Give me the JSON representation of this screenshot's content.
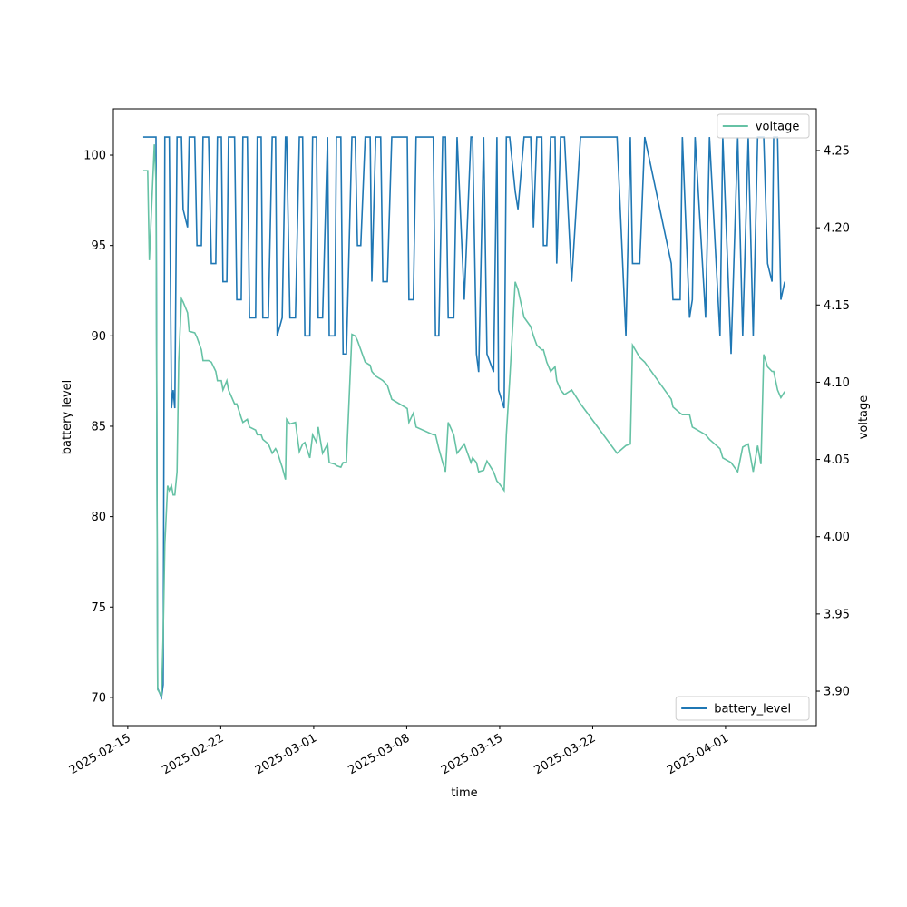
{
  "chart_data": {
    "type": "line",
    "x_label": "time",
    "y_label": "battery level",
    "y2_label": "voltage",
    "x": [
      "2025-02-16 04:00",
      "2025-02-16 12:00",
      "2025-02-16 15:00",
      "2025-02-17 00:00",
      "2025-02-17 03:00",
      "2025-02-17 06:00",
      "2025-02-17 13:00",
      "2025-02-17 16:00",
      "2025-02-17 19:00",
      "2025-02-18 00:00",
      "2025-02-18 03:00",
      "2025-02-18 07:00",
      "2025-02-18 10:00",
      "2025-02-18 13:00",
      "2025-02-18 17:00",
      "2025-02-18 20:00",
      "2025-02-19 01:00",
      "2025-02-19 04:00",
      "2025-02-19 12:00",
      "2025-02-19 15:00",
      "2025-02-20 01:00",
      "2025-02-20 05:00",
      "2025-02-20 13:00",
      "2025-02-20 16:00",
      "2025-02-21 02:00",
      "2025-02-21 07:00",
      "2025-02-21 15:00",
      "2025-02-21 18:00",
      "2025-02-22 01:00",
      "2025-02-22 04:00",
      "2025-02-22 11:00",
      "2025-02-22 14:00",
      "2025-02-23 01:00",
      "2025-02-23 05:00",
      "2025-02-23 13:00",
      "2025-02-23 16:00",
      "2025-02-24 00:00",
      "2025-02-24 04:00",
      "2025-02-24 15:00",
      "2025-02-24 18:00",
      "2025-02-25 01:00",
      "2025-02-25 04:00",
      "2025-02-25 14:00",
      "2025-02-25 21:00",
      "2025-02-26 03:00",
      "2025-02-26 06:00",
      "2025-02-26 15:00",
      "2025-02-26 21:00",
      "2025-02-26 23:00",
      "2025-02-27 05:00",
      "2025-02-27 15:00",
      "2025-02-27 22:00",
      "2025-02-28 04:00",
      "2025-02-28 08:00",
      "2025-02-28 17:00",
      "2025-02-28 22:00",
      "2025-03-01 05:00",
      "2025-03-01 08:00",
      "2025-03-01 16:00",
      "2025-03-02 01:00",
      "2025-03-02 04:00",
      "2025-03-02 14:00",
      "2025-03-02 17:00",
      "2025-03-03 01:00",
      "2025-03-03 05:00",
      "2025-03-03 11:00",
      "2025-03-03 21:00",
      "2025-03-04 03:00",
      "2025-03-04 07:00",
      "2025-03-04 13:00",
      "2025-03-04 21:00",
      "2025-03-05 06:00",
      "2025-03-05 09:00",
      "2025-03-05 16:00",
      "2025-03-06 01:00",
      "2025-03-06 05:00",
      "2025-03-06 13:00",
      "2025-03-06 21:00",
      "2025-03-08 01:00",
      "2025-03-08 04:00",
      "2025-03-08 12:00",
      "2025-03-08 17:00",
      "2025-03-10 00:00",
      "2025-03-10 04:00",
      "2025-03-10 10:00",
      "2025-03-10 17:00",
      "2025-03-10 22:00",
      "2025-03-11 03:00",
      "2025-03-11 13:00",
      "2025-03-11 19:00",
      "2025-03-12 08:00",
      "2025-03-12 20:00",
      "2025-03-12 23:00",
      "2025-03-13 06:00",
      "2025-03-13 10:00",
      "2025-03-13 19:00",
      "2025-03-14 01:00",
      "2025-03-14 13:00",
      "2025-03-14 19:00",
      "2025-03-14 22:00",
      "2025-03-15 08:00",
      "2025-03-15 12:00",
      "2025-03-15 18:00",
      "2025-03-16 04:00",
      "2025-03-16 09:00",
      "2025-03-16 20:00",
      "2025-03-17 08:00",
      "2025-03-17 13:00",
      "2025-03-17 19:00",
      "2025-03-18 04:00",
      "2025-03-18 07:00",
      "2025-03-18 13:00",
      "2025-03-18 20:00",
      "2025-03-19 04:00",
      "2025-03-19 07:00",
      "2025-03-19 14:00",
      "2025-03-19 21:00",
      "2025-03-20 10:00",
      "2025-03-21 02:00",
      "2025-03-23 20:00",
      "2025-03-24 12:00",
      "2025-03-24 20:00",
      "2025-03-25 00:00",
      "2025-03-25 13:00",
      "2025-03-25 22:00",
      "2025-03-27 22:00",
      "2025-03-28 01:00",
      "2025-03-28 14:00",
      "2025-03-28 18:00",
      "2025-03-29 07:00",
      "2025-03-29 12:00",
      "2025-03-29 17:00",
      "2025-03-30 12:00",
      "2025-03-30 19:00",
      "2025-03-31 14:00",
      "2025-03-31 19:00",
      "2025-04-01 10:00",
      "2025-04-01 22:00",
      "2025-04-02 07:00",
      "2025-04-02 17:00",
      "2025-04-03 02:00",
      "2025-04-03 10:00",
      "2025-04-03 16:00",
      "2025-04-03 21:00",
      "2025-04-04 04:00",
      "2025-04-04 12:00",
      "2025-04-04 15:00",
      "2025-04-04 22:00",
      "2025-04-05 04:00",
      "2025-04-05 11:00"
    ],
    "series": [
      {
        "name": "battery_level",
        "color": "#1f77b4",
        "axis": "y",
        "legend_loc": "lower right",
        "values": [
          101,
          101,
          101,
          101,
          101,
          70.5,
          70,
          70.7,
          101,
          101,
          101,
          86,
          87,
          86,
          101,
          101,
          101,
          97,
          96,
          101,
          101,
          95,
          95,
          101,
          101,
          94,
          94,
          101,
          101,
          93,
          93,
          101,
          101,
          92,
          92,
          101,
          101,
          91,
          91,
          101,
          101,
          91,
          91,
          101,
          101,
          90,
          91,
          101,
          101,
          91,
          91,
          101,
          101,
          90,
          90,
          101,
          101,
          91,
          91,
          101,
          90,
          90,
          101,
          101,
          89,
          89,
          101,
          101,
          95,
          95,
          101,
          101,
          93,
          101,
          101,
          93,
          93,
          101,
          101,
          92,
          92,
          101,
          101,
          90,
          90,
          101,
          101,
          91,
          91,
          101,
          92,
          101,
          101,
          89,
          88,
          101,
          89,
          88,
          101,
          87,
          86,
          101,
          101,
          98,
          97,
          101,
          101,
          96,
          101,
          101,
          95,
          95,
          101,
          101,
          94,
          101,
          101,
          93,
          101,
          101,
          90,
          101,
          94,
          94,
          101,
          94,
          92,
          92,
          101,
          91,
          92,
          101,
          91,
          101,
          90,
          101,
          89,
          101,
          90,
          101,
          90,
          101,
          101,
          101,
          94,
          93,
          101,
          101,
          92,
          93
        ]
      },
      {
        "name": "voltage",
        "color": "#66c2a5",
        "axis": "y2",
        "legend_loc": "upper right",
        "values": [
          4.237,
          4.237,
          4.179,
          4.254,
          4.23,
          3.901,
          3.897,
          3.936,
          3.995,
          4.033,
          4.03,
          4.033,
          4.027,
          4.027,
          4.042,
          4.113,
          4.154,
          4.152,
          4.145,
          4.133,
          4.132,
          4.129,
          4.121,
          4.114,
          4.114,
          4.113,
          4.107,
          4.101,
          4.101,
          4.095,
          4.101,
          4.095,
          4.086,
          4.086,
          4.077,
          4.074,
          4.076,
          4.071,
          4.069,
          4.066,
          4.066,
          4.063,
          4.06,
          4.054,
          4.057,
          4.055,
          4.045,
          4.037,
          4.076,
          4.073,
          4.074,
          4.055,
          4.06,
          4.061,
          4.051,
          4.066,
          4.061,
          4.071,
          4.054,
          4.06,
          4.048,
          4.047,
          4.046,
          4.045,
          4.048,
          4.048,
          4.131,
          4.13,
          4.127,
          4.121,
          4.113,
          4.111,
          4.107,
          4.104,
          4.102,
          4.101,
          4.098,
          4.089,
          4.083,
          4.074,
          4.08,
          4.071,
          4.066,
          4.066,
          4.057,
          4.048,
          4.042,
          4.074,
          4.066,
          4.054,
          4.06,
          4.048,
          4.051,
          4.048,
          4.042,
          4.043,
          4.049,
          4.042,
          4.036,
          4.035,
          4.03,
          4.066,
          4.101,
          4.165,
          4.16,
          4.142,
          4.136,
          4.13,
          4.124,
          4.121,
          4.121,
          4.113,
          4.107,
          4.11,
          4.101,
          4.095,
          4.092,
          4.095,
          4.086,
          4.054,
          4.059,
          4.06,
          4.124,
          4.116,
          4.113,
          4.089,
          4.084,
          4.08,
          4.079,
          4.079,
          4.071,
          4.07,
          4.066,
          4.063,
          4.057,
          4.051,
          4.048,
          4.042,
          4.058,
          4.06,
          4.042,
          4.059,
          4.047,
          4.118,
          4.11,
          4.107,
          4.107,
          4.095,
          4.09,
          4.094
        ]
      }
    ],
    "xlim": [
      "2025-02-13 22:00",
      "2025-04-07 20:00"
    ],
    "xticks": [
      "2025-02-15",
      "2025-02-22",
      "2025-03-01",
      "2025-03-08",
      "2025-03-15",
      "2025-03-22",
      "2025-04-01"
    ],
    "ylim": [
      68.44,
      102.56
    ],
    "yticks": [
      70,
      75,
      80,
      85,
      90,
      95,
      100
    ],
    "y2lim": [
      3.8777,
      4.277
    ],
    "y2ticks": [
      {
        "value": 3.9,
        "label": "3.90"
      },
      3.95,
      {
        "value": 4.0,
        "label": "4.00"
      },
      4.05,
      {
        "value": 4.1,
        "label": "4.10"
      },
      4.15,
      {
        "value": 4.2,
        "label": "4.20"
      },
      4.25
    ]
  }
}
